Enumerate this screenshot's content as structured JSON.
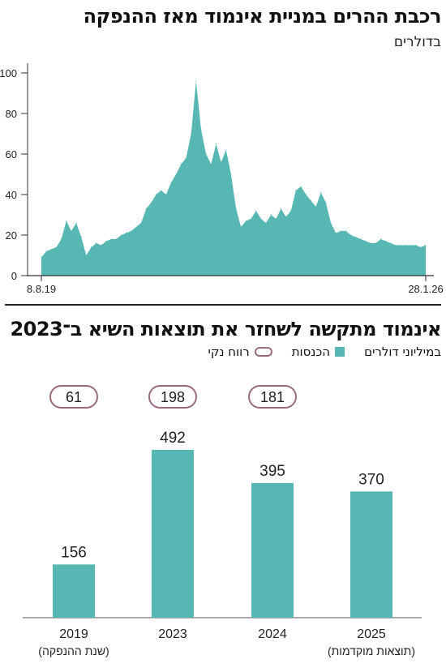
{
  "charts": [
    {
      "title": "רכבת ההרים במניית אינמוד מאז ההנפקה",
      "subtitle": "בדולרים",
      "chart_data": {
        "type": "area",
        "color": "#57b8b3",
        "x_labels": [
          "8.8.19",
          "28.1.26"
        ],
        "ylim": [
          0,
          100
        ],
        "yticks": [
          0,
          20,
          40,
          60,
          80,
          100
        ],
        "grid": false,
        "x": [
          "2019-08",
          "2019-09",
          "2019-10",
          "2019-11",
          "2019-12",
          "2020-01",
          "2020-02",
          "2020-03",
          "2020-04",
          "2020-05",
          "2020-06",
          "2020-07",
          "2020-08",
          "2020-09",
          "2020-10",
          "2020-11",
          "2020-12",
          "2021-01",
          "2021-02",
          "2021-03",
          "2021-04",
          "2021-05",
          "2021-06",
          "2021-07",
          "2021-08",
          "2021-09",
          "2021-10",
          "2021-11",
          "2021-12",
          "2022-01",
          "2022-02",
          "2022-03",
          "2022-04",
          "2022-05",
          "2022-06",
          "2022-07",
          "2022-08",
          "2022-09",
          "2022-10",
          "2022-11",
          "2022-12",
          "2023-01",
          "2023-02",
          "2023-03",
          "2023-04",
          "2023-05",
          "2023-06",
          "2023-07",
          "2023-08",
          "2023-09",
          "2023-10",
          "2023-11",
          "2023-12",
          "2024-01",
          "2024-02",
          "2024-03",
          "2024-04",
          "2024-05",
          "2024-06",
          "2024-07",
          "2024-08",
          "2024-09",
          "2024-10",
          "2024-11",
          "2024-12",
          "2025-01",
          "2025-02",
          "2025-03",
          "2025-04",
          "2025-05",
          "2025-06",
          "2025-07",
          "2025-08",
          "2025-09",
          "2025-10",
          "2025-11",
          "2025-12",
          "2026-01"
        ],
        "values": [
          9,
          12,
          13,
          14,
          18,
          27,
          22,
          26,
          19,
          10,
          14,
          16,
          15,
          17,
          18,
          18,
          20,
          21,
          22,
          24,
          26,
          33,
          36,
          40,
          42,
          40,
          46,
          50,
          55,
          58,
          70,
          96,
          72,
          60,
          55,
          65,
          56,
          62,
          50,
          33,
          24,
          27,
          28,
          32,
          28,
          26,
          30,
          28,
          33,
          29,
          32,
          42,
          44,
          40,
          37,
          34,
          41,
          36,
          26,
          21,
          22,
          22,
          20,
          19,
          18,
          17,
          16,
          16,
          18,
          17,
          16,
          15,
          15,
          15,
          15,
          15,
          14,
          15
        ]
      }
    },
    {
      "title": "אינמוד מתקשה לשחזר את תוצאות השיא ב־2023",
      "legend": {
        "unit": "במיליוני דולרים",
        "revenue": "הכנסות",
        "net": "רווח נקי"
      },
      "chart_data": {
        "type": "bar",
        "categories": [
          "2019",
          "2023",
          "2024",
          "2025"
        ],
        "category_notes": [
          "(שנת ההנפקה)",
          "",
          "",
          "(תוצאות מוקדמות)"
        ],
        "series": [
          {
            "name": "הכנסות",
            "values": [
              156,
              492,
              395,
              370
            ],
            "color": "#57b8b3"
          },
          {
            "name": "רווח נקי",
            "values": [
              61,
              198,
              181,
              null
            ],
            "color": "#9b6b78"
          }
        ]
      }
    }
  ]
}
